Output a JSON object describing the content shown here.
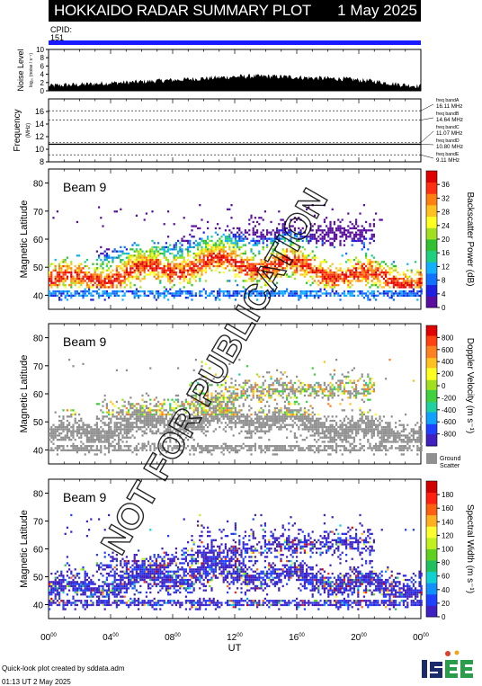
{
  "header": {
    "title": "HOKKAIDO RADAR SUMMARY PLOT",
    "date": "1 May 2025"
  },
  "cpid": {
    "label": "CPID:",
    "value": "151"
  },
  "watermark": "NOT FOR PUBLICATION",
  "footer": {
    "line1": "Quick-look plot created by sddata.adm",
    "line2": "01:13 UT  2 May 2025"
  },
  "logo": {
    "text": "ISEE"
  },
  "colors": {
    "header_bg": "#000000",
    "cpid_bar": "#1a1aff",
    "ground_scatter": "#909090"
  },
  "chart_data": [
    {
      "type": "area",
      "ylabel": "Noise Level",
      "ylabel_sub": "log₁₀ (noise / s⁻¹)",
      "ylim": [
        0,
        10
      ],
      "yticks": [
        "0",
        "2",
        "4",
        "6",
        "8",
        "10"
      ],
      "x": [
        0,
        1,
        2,
        3,
        4,
        5,
        6,
        7,
        8,
        9,
        10,
        11,
        12,
        13,
        14,
        15,
        16,
        17,
        18,
        19,
        20,
        21,
        22,
        23,
        24
      ],
      "values": [
        1.2,
        1.4,
        1.5,
        1.7,
        1.9,
        2.0,
        2.2,
        2.4,
        2.6,
        2.8,
        3.0,
        3.2,
        3.4,
        3.5,
        3.5,
        3.4,
        3.3,
        3.1,
        3.0,
        2.9,
        2.6,
        2.3,
        1.8,
        1.4,
        1.1
      ]
    },
    {
      "type": "line",
      "ylabel": "Frequency",
      "ylabel_sub": "(MHz)",
      "ylim": [
        8,
        18
      ],
      "yticks": [
        "8",
        "10",
        "12",
        "14",
        "16"
      ],
      "bands": [
        {
          "name": "freq bandA",
          "label": "16.11 MHz",
          "value": 16.11
        },
        {
          "name": "freq bandB",
          "label": "14.64 MHz",
          "value": 14.64
        },
        {
          "name": "freq bandC",
          "label": "11.07 MHz",
          "value": 11.07
        },
        {
          "name": "freq bandD",
          "label": "10.80 MHz",
          "value": 10.8
        },
        {
          "name": "freq bandE",
          "label": "9.11 MHz",
          "value": 9.11
        }
      ],
      "active_band": 10.8
    },
    {
      "type": "heatmap",
      "beam": "Beam  9",
      "ylabel": "Magnetic Latitude",
      "ylim": [
        35,
        85
      ],
      "yticks": [
        "40",
        "50",
        "60",
        "70",
        "80"
      ],
      "colorbar": {
        "label": "Backscatter Power (dB)",
        "min": 0,
        "max": 40,
        "ticks": [
          "0",
          "4",
          "8",
          "12",
          "16",
          "20",
          "24",
          "28",
          "32",
          "36"
        ]
      },
      "scale": "power"
    },
    {
      "type": "heatmap",
      "beam": "Beam  9",
      "ylabel": "Magnetic Latitude",
      "ylim": [
        35,
        85
      ],
      "yticks": [
        "40",
        "50",
        "60",
        "70",
        "80"
      ],
      "colorbar": {
        "label": "Doppler Velocity (m s⁻¹)",
        "min": -1000,
        "max": 1000,
        "ticks": [
          "800",
          "600",
          "400",
          "200",
          "0",
          "-200",
          "-400",
          "-600",
          "-800"
        ]
      },
      "ground_scatter_label": [
        "Ground",
        "Scatter"
      ],
      "scale": "velocity"
    },
    {
      "type": "heatmap",
      "beam": "Beam  9",
      "ylabel": "Magnetic Latitude",
      "ylim": [
        35,
        85
      ],
      "yticks": [
        "40",
        "50",
        "60",
        "70",
        "80"
      ],
      "colorbar": {
        "label": "Spectral Width (m s⁻¹)",
        "min": 0,
        "max": 200,
        "ticks": [
          "0",
          "20",
          "40",
          "60",
          "80",
          "100",
          "120",
          "140",
          "160",
          "180"
        ]
      },
      "scale": "width"
    }
  ],
  "xaxis": {
    "label": "UT",
    "range": [
      0,
      24
    ],
    "ticks": [
      {
        "t": 0,
        "hh": "00",
        "mm": "00"
      },
      {
        "t": 4,
        "hh": "04",
        "mm": "00"
      },
      {
        "t": 8,
        "hh": "08",
        "mm": "00"
      },
      {
        "t": 12,
        "hh": "12",
        "mm": "00"
      },
      {
        "t": 16,
        "hh": "16",
        "mm": "00"
      },
      {
        "t": 20,
        "hh": "20",
        "mm": "00"
      },
      {
        "t": 24,
        "hh": "00",
        "mm": "00"
      }
    ]
  }
}
